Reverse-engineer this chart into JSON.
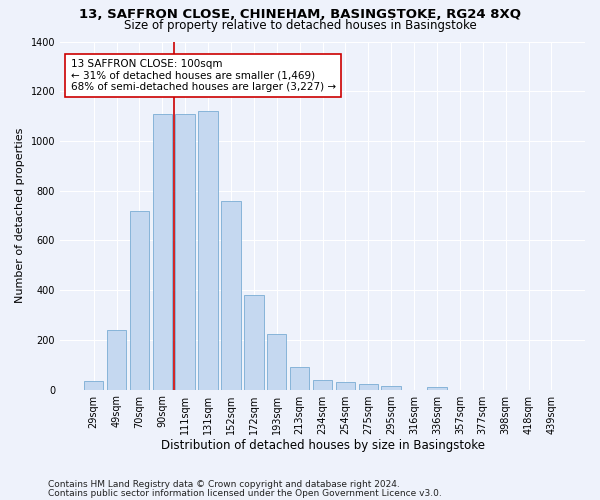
{
  "title1": "13, SAFFRON CLOSE, CHINEHAM, BASINGSTOKE, RG24 8XQ",
  "title2": "Size of property relative to detached houses in Basingstoke",
  "xlabel": "Distribution of detached houses by size in Basingstoke",
  "ylabel": "Number of detached properties",
  "categories": [
    "29sqm",
    "49sqm",
    "70sqm",
    "90sqm",
    "111sqm",
    "131sqm",
    "152sqm",
    "172sqm",
    "193sqm",
    "213sqm",
    "234sqm",
    "254sqm",
    "275sqm",
    "295sqm",
    "316sqm",
    "336sqm",
    "357sqm",
    "377sqm",
    "398sqm",
    "418sqm",
    "439sqm"
  ],
  "values": [
    35,
    240,
    720,
    1110,
    1110,
    1120,
    760,
    380,
    225,
    90,
    37,
    30,
    22,
    14,
    0,
    10,
    0,
    0,
    0,
    0,
    0
  ],
  "bar_color": "#c5d8f0",
  "bar_edge_color": "#7aadd4",
  "vline_color": "#cc0000",
  "annotation_line1": "13 SAFFRON CLOSE: 100sqm",
  "annotation_line2": "← 31% of detached houses are smaller (1,469)",
  "annotation_line3": "68% of semi-detached houses are larger (3,227) →",
  "annotation_box_color": "#ffffff",
  "annotation_box_edge": "#cc0000",
  "footnote1": "Contains HM Land Registry data © Crown copyright and database right 2024.",
  "footnote2": "Contains public sector information licensed under the Open Government Licence v3.0.",
  "ylim": [
    0,
    1400
  ],
  "background_color": "#eef2fb",
  "grid_color": "#ffffff",
  "title1_fontsize": 9.5,
  "title2_fontsize": 8.5,
  "xlabel_fontsize": 8.5,
  "ylabel_fontsize": 8,
  "tick_fontsize": 7,
  "annotation_fontsize": 7.5,
  "footnote_fontsize": 6.5
}
